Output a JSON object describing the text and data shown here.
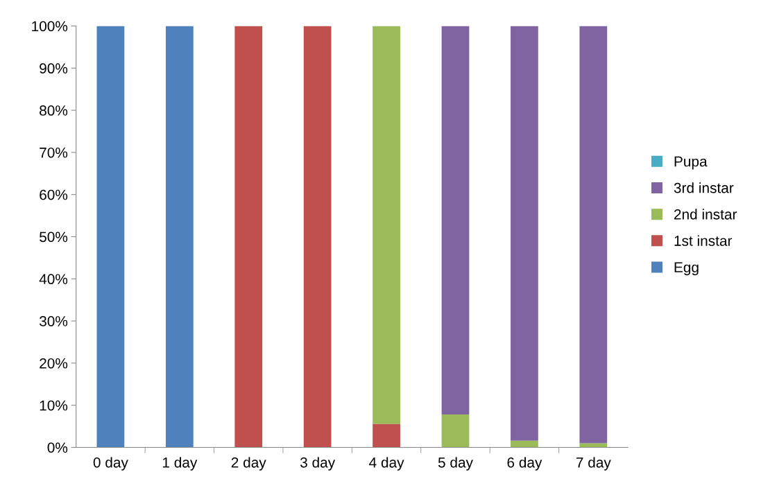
{
  "chart_data": {
    "type": "bar",
    "stacked": true,
    "categories": [
      "0 day",
      "1 day",
      "2 day",
      "3 day",
      "4 day",
      "5 day",
      "6 day",
      "7 day"
    ],
    "series": [
      {
        "name": "Egg",
        "color": "#4f81bd",
        "values": [
          100,
          100,
          0,
          0,
          0,
          0,
          0,
          0
        ]
      },
      {
        "name": "1st instar",
        "color": "#c0504d",
        "values": [
          0,
          0,
          100,
          100,
          5.6,
          0,
          0,
          0
        ]
      },
      {
        "name": "2nd instar",
        "color": "#9bbb59",
        "values": [
          0,
          0,
          0,
          0,
          94.4,
          7.8,
          1.6,
          1.0
        ]
      },
      {
        "name": "3rd instar",
        "color": "#8064a2",
        "values": [
          0,
          0,
          0,
          0,
          0,
          92.2,
          98.4,
          99.0
        ]
      },
      {
        "name": "Pupa",
        "color": "#4bacc6",
        "values": [
          0,
          0,
          0,
          0,
          0,
          0,
          0,
          0
        ]
      }
    ],
    "ylim": [
      0,
      100
    ],
    "yticks": [
      {
        "value": 0,
        "label": "0%"
      },
      {
        "value": 10,
        "label": "10%"
      },
      {
        "value": 20,
        "label": "20%"
      },
      {
        "value": 30,
        "label": "30%"
      },
      {
        "value": 40,
        "label": "40%"
      },
      {
        "value": 50,
        "label": "50%"
      },
      {
        "value": 60,
        "label": "60%"
      },
      {
        "value": 70,
        "label": "70%"
      },
      {
        "value": 80,
        "label": "80%"
      },
      {
        "value": 90,
        "label": "90%"
      },
      {
        "value": 100,
        "label": "100%"
      }
    ],
    "grid": false,
    "legend": "right"
  }
}
